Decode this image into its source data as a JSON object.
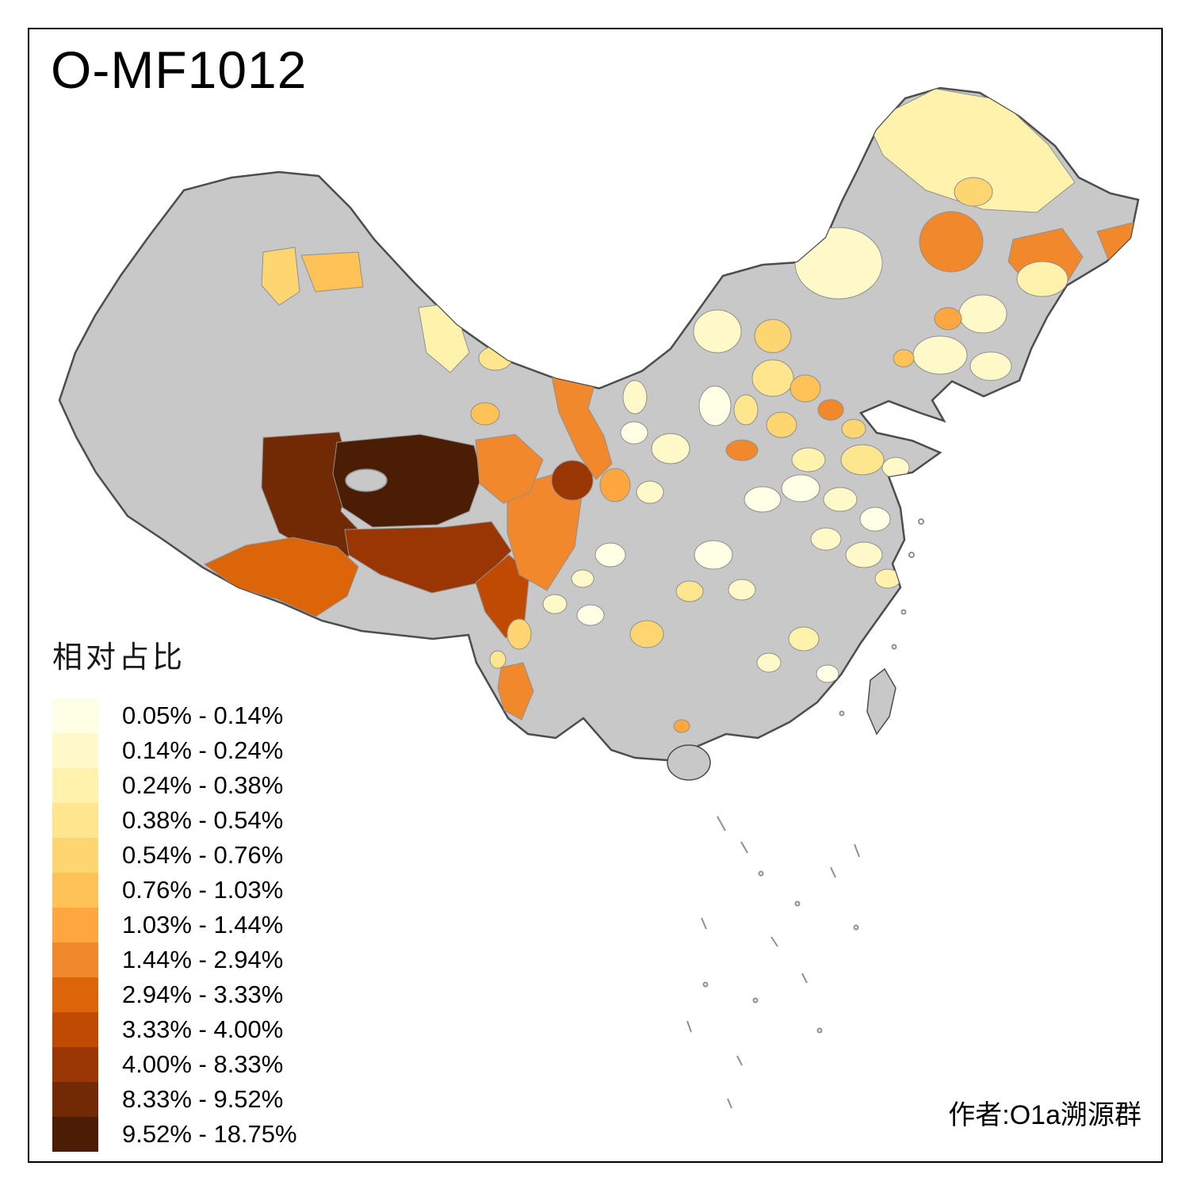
{
  "title": "O-MF1012",
  "credit": "作者:O1a溯源群",
  "legend": {
    "title": "相对占比",
    "items": [
      {
        "label": "0.05% - 0.14%",
        "color": "#FFFFE5"
      },
      {
        "label": "0.14% - 0.24%",
        "color": "#FFF9C9"
      },
      {
        "label": "0.24% - 0.38%",
        "color": "#FEF2AC"
      },
      {
        "label": "0.38% - 0.54%",
        "color": "#FEE68F"
      },
      {
        "label": "0.54% - 0.76%",
        "color": "#FED671"
      },
      {
        "label": "0.76% - 1.03%",
        "color": "#FEC257"
      },
      {
        "label": "1.03% - 1.44%",
        "color": "#FEA740"
      },
      {
        "label": "1.44% - 2.94%",
        "color": "#F1882C"
      },
      {
        "label": "2.94% - 3.33%",
        "color": "#DD6509"
      },
      {
        "label": "3.33% - 4.00%",
        "color": "#C04A02"
      },
      {
        "label": "4.00% - 8.33%",
        "color": "#9A3603"
      },
      {
        "label": "8.33% - 9.52%",
        "color": "#722A05"
      },
      {
        "label": "9.52% - 18.75%",
        "color": "#4A1D04"
      }
    ]
  },
  "map": {
    "base_color": "#C8C8C8",
    "outline_color": "#4D4D4D",
    "detail_color": "#909090",
    "background": "#FFFFFF",
    "frame_color": "#000000"
  }
}
